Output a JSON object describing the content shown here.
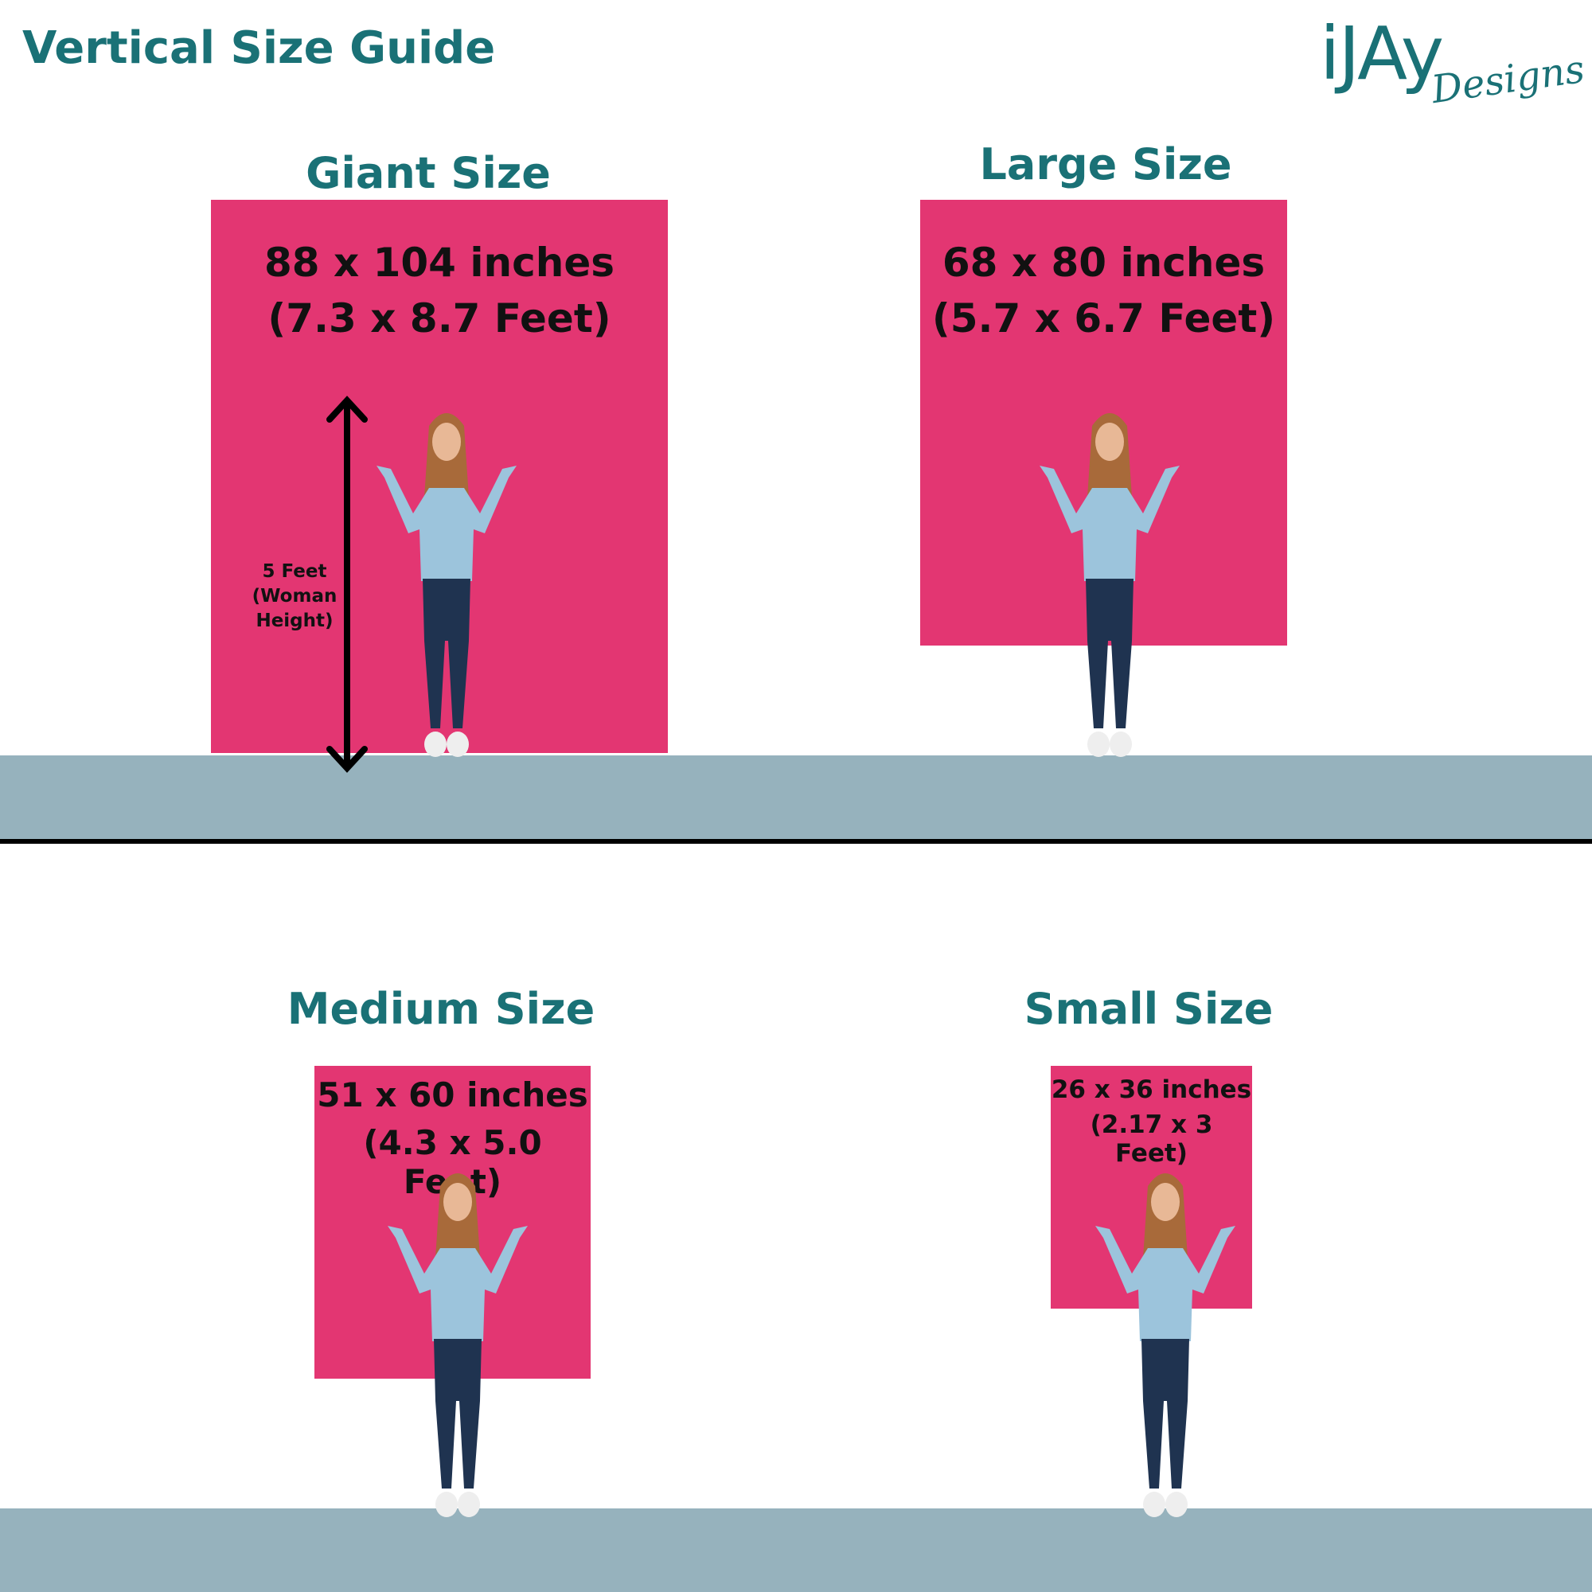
{
  "header": {
    "title": "Vertical Size Guide"
  },
  "logo": {
    "main": "iJAy",
    "script": "Designs"
  },
  "colors": {
    "accent": "#1a7176",
    "panel": "#e33672",
    "floor": "#96b2bd"
  },
  "sizes": [
    {
      "title": "Giant Size",
      "dims": "88 x 104 inches",
      "feet": "(7.3 x 8.7 Feet)"
    },
    {
      "title": "Large Size",
      "dims": "68 x 80 inches",
      "feet": "(5.7 x 6.7 Feet)"
    },
    {
      "title": "Medium Size",
      "dims": "51 x 60 inches",
      "feet": "(4.3 x 5.0 Feet)"
    },
    {
      "title": "Small Size",
      "dims": "26 x 36 inches",
      "feet": "(2.17 x 3 Feet)"
    }
  ],
  "height_marker": {
    "line1": "5 Feet",
    "line2": "(Woman",
    "line3": "Height)"
  }
}
